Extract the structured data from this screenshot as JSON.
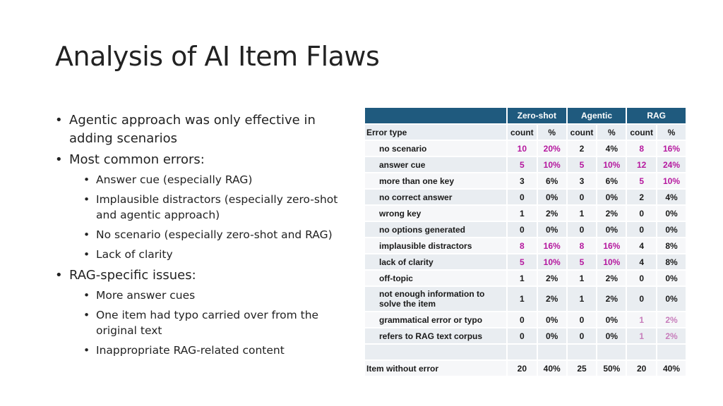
{
  "slide": {
    "title": "Analysis of AI Item Flaws",
    "bullets": [
      {
        "text": "Agentic approach was only effective in adding scenarios"
      },
      {
        "text": "Most common errors:",
        "sub": [
          "Answer cue (especially RAG)",
          "Implausible distractors (especially zero-shot and agentic approach)",
          "No scenario (especially zero-shot and RAG)",
          "Lack of clarity"
        ]
      },
      {
        "text": "RAG-specific issues:",
        "sub": [
          "More answer cues",
          "One item had typo carried over from the original text",
          "Inappropriate RAG-related content"
        ]
      }
    ]
  },
  "table": {
    "groups": [
      "Zero-shot",
      "Agentic",
      "RAG"
    ],
    "row_header": "Error type",
    "col_count": "count",
    "col_pct": "%",
    "highlight_color": "#b5179e",
    "rows": [
      {
        "label": "no scenario",
        "zc": "10",
        "zp": "20%",
        "ac": "2",
        "ap": "4%",
        "rc": "8",
        "rp": "16%"
      },
      {
        "label": "answer cue",
        "zc": "5",
        "zp": "10%",
        "ac": "5",
        "ap": "10%",
        "rc": "12",
        "rp": "24%"
      },
      {
        "label": "more than one key",
        "zc": "3",
        "zp": "6%",
        "ac": "3",
        "ap": "6%",
        "rc": "5",
        "rp": "10%"
      },
      {
        "label": "no correct answer",
        "zc": "0",
        "zp": "0%",
        "ac": "0",
        "ap": "0%",
        "rc": "2",
        "rp": "4%"
      },
      {
        "label": "wrong key",
        "zc": "1",
        "zp": "2%",
        "ac": "1",
        "ap": "2%",
        "rc": "0",
        "rp": "0%"
      },
      {
        "label": "no options generated",
        "zc": "0",
        "zp": "0%",
        "ac": "0",
        "ap": "0%",
        "rc": "0",
        "rp": "0%"
      },
      {
        "label": "implausible distractors",
        "zc": "8",
        "zp": "16%",
        "ac": "8",
        "ap": "16%",
        "rc": "4",
        "rp": "8%"
      },
      {
        "label": "lack of clarity",
        "zc": "5",
        "zp": "10%",
        "ac": "5",
        "ap": "10%",
        "rc": "4",
        "rp": "8%"
      },
      {
        "label": "off-topic",
        "zc": "1",
        "zp": "2%",
        "ac": "1",
        "ap": "2%",
        "rc": "0",
        "rp": "0%"
      },
      {
        "label": "not enough information to solve the item",
        "zc": "1",
        "zp": "2%",
        "ac": "1",
        "ap": "2%",
        "rc": "0",
        "rp": "0%"
      },
      {
        "label": "grammatical error or typo",
        "zc": "0",
        "zp": "0%",
        "ac": "0",
        "ap": "0%",
        "rc": "1",
        "rp": "2%"
      },
      {
        "label": "refers to RAG text corpus",
        "zc": "0",
        "zp": "0%",
        "ac": "0",
        "ap": "0%",
        "rc": "1",
        "rp": "2%"
      }
    ],
    "footer": {
      "label": "Item without error",
      "zc": "20",
      "zp": "40%",
      "ac": "25",
      "ap": "50%",
      "rc": "20",
      "rp": "40%"
    }
  }
}
